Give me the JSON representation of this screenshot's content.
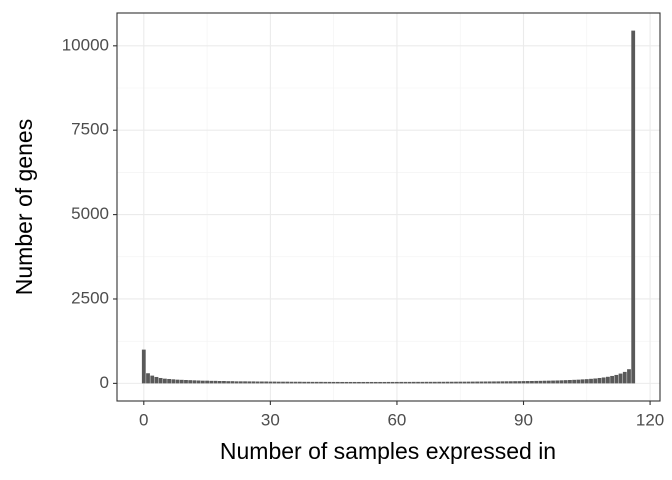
{
  "chart_data": {
    "type": "bar",
    "x_label": "Number of samples expressed in",
    "y_label": "Number of genes",
    "x": [
      0,
      1,
      2,
      3,
      4,
      5,
      6,
      7,
      8,
      9,
      10,
      11,
      12,
      13,
      14,
      15,
      16,
      17,
      18,
      19,
      20,
      21,
      22,
      23,
      24,
      25,
      26,
      27,
      28,
      29,
      30,
      31,
      32,
      33,
      34,
      35,
      36,
      37,
      38,
      39,
      40,
      41,
      42,
      43,
      44,
      45,
      46,
      47,
      48,
      49,
      50,
      51,
      52,
      53,
      54,
      55,
      56,
      57,
      58,
      59,
      60,
      61,
      62,
      63,
      64,
      65,
      66,
      67,
      68,
      69,
      70,
      71,
      72,
      73,
      74,
      75,
      76,
      77,
      78,
      79,
      80,
      81,
      82,
      83,
      84,
      85,
      86,
      87,
      88,
      89,
      90,
      91,
      92,
      93,
      94,
      95,
      96,
      97,
      98,
      99,
      100,
      101,
      102,
      103,
      104,
      105,
      106,
      107,
      108,
      109,
      110,
      111,
      112,
      113,
      114,
      115,
      116
    ],
    "values": [
      1000,
      300,
      230,
      190,
      160,
      140,
      130,
      120,
      110,
      105,
      100,
      95,
      90,
      85,
      80,
      80,
      75,
      75,
      70,
      70,
      65,
      65,
      60,
      60,
      60,
      58,
      58,
      55,
      55,
      55,
      52,
      52,
      50,
      50,
      50,
      48,
      48,
      48,
      46,
      46,
      45,
      45,
      45,
      44,
      44,
      43,
      43,
      42,
      42,
      42,
      42,
      42,
      42,
      42,
      42,
      42,
      42,
      42,
      43,
      43,
      43,
      44,
      44,
      44,
      45,
      45,
      45,
      46,
      46,
      46,
      47,
      47,
      48,
      48,
      49,
      50,
      50,
      51,
      52,
      53,
      54,
      55,
      56,
      57,
      58,
      60,
      61,
      62,
      64,
      65,
      67,
      69,
      71,
      73,
      75,
      78,
      80,
      83,
      86,
      90,
      95,
      100,
      105,
      110,
      118,
      125,
      135,
      145,
      160,
      175,
      195,
      220,
      250,
      290,
      340,
      420,
      10450
    ],
    "color": "#595959",
    "xlim": [
      -6.35,
      122.35
    ],
    "ylim": [
      -522,
      10972
    ],
    "xticks": [
      0,
      30,
      60,
      90,
      120
    ],
    "yticks": [
      0,
      2500,
      5000,
      7500,
      10000
    ],
    "grid": true
  }
}
